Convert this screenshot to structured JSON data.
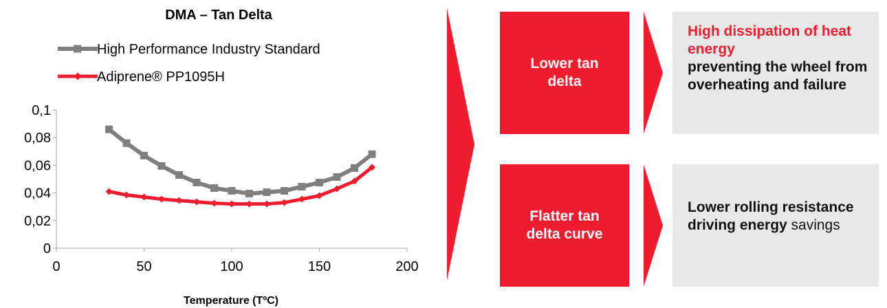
{
  "chart_data": {
    "type": "line",
    "title": "DMA – Tan Delta",
    "xlabel": "Temperature (TºC)",
    "ylabel": "",
    "xlim": [
      0,
      200
    ],
    "ylim": [
      0,
      0.1
    ],
    "x_ticks": [
      "0",
      "50",
      "100",
      "150",
      "200"
    ],
    "y_ticks": [
      "0",
      "0,02",
      "0,04",
      "0,06",
      "0,08",
      "0,1"
    ],
    "legend_position": "top",
    "x": [
      30,
      40,
      50,
      60,
      70,
      80,
      90,
      100,
      110,
      120,
      130,
      140,
      150,
      160,
      170,
      180
    ],
    "series": [
      {
        "name": "High Performance Industry Standard",
        "color": "#7f7f7f",
        "marker": "square",
        "values": [
          0.086,
          0.076,
          0.067,
          0.0595,
          0.053,
          0.0475,
          0.0435,
          0.0415,
          0.0395,
          0.0405,
          0.0415,
          0.0445,
          0.0475,
          0.0515,
          0.058,
          0.068
        ]
      },
      {
        "name": "Adiprene® PP1095H",
        "color": "#ee1c2e",
        "marker": "diamond",
        "values": [
          0.041,
          0.0385,
          0.037,
          0.0355,
          0.0345,
          0.0335,
          0.0325,
          0.032,
          0.032,
          0.032,
          0.033,
          0.0355,
          0.038,
          0.043,
          0.0485,
          0.0585
        ]
      }
    ]
  },
  "boxes": {
    "top_label": "Lower tan delta",
    "bottom_label": "Flatter tan delta curve"
  },
  "panels": {
    "top": {
      "highlight": "High dissipation of heat energy",
      "rest": "preventing the wheel from overheating and failure"
    },
    "bottom": {
      "bold": "Lower rolling resistance driving energy",
      "rest": " savings"
    }
  },
  "colors": {
    "accent": "#ee1c2e",
    "panel_bg": "#e8e8e8",
    "series_gray": "#7f7f7f"
  }
}
